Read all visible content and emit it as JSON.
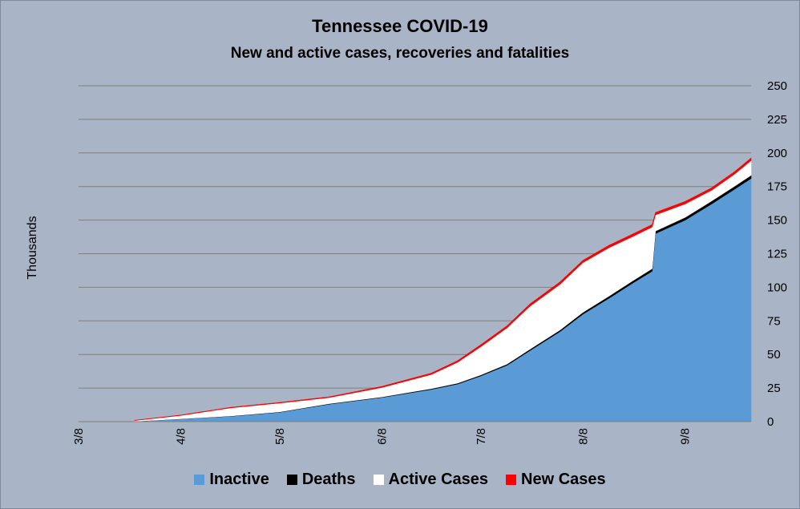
{
  "chart_data": {
    "type": "area",
    "title": "Tennessee COVID-19",
    "subtitle": "New and active cases, recoveries and fatalities",
    "ylabel": "Thousands",
    "xlabel": "",
    "x_tick_labels": [
      "3/8",
      "4/8",
      "5/8",
      "6/8",
      "7/8",
      "8/8",
      "9/8"
    ],
    "y_ticks": [
      0,
      25,
      50,
      75,
      100,
      125,
      150,
      175,
      200,
      225,
      250
    ],
    "ylim": [
      0,
      250
    ],
    "xlim": [
      "2020-03-08",
      "2020-09-28"
    ],
    "y_axis_side": "right",
    "grid": true,
    "legend_position": "bottom",
    "stacked": true,
    "x": [
      "2020-03-25",
      "2020-04-08",
      "2020-04-23",
      "2020-05-08",
      "2020-05-23",
      "2020-06-08",
      "2020-06-23",
      "2020-07-01",
      "2020-07-08",
      "2020-07-16",
      "2020-07-23",
      "2020-08-01",
      "2020-08-08",
      "2020-08-16",
      "2020-08-23",
      "2020-08-29",
      "2020-08-30",
      "2020-09-08",
      "2020-09-16",
      "2020-09-23",
      "2020-09-28"
    ],
    "series": [
      {
        "name": "Inactive",
        "color": "#5b9bd5",
        "values": [
          0.2,
          2,
          4,
          7,
          13,
          18,
          24,
          28,
          34,
          42,
          53,
          67,
          80,
          92,
          103,
          112,
          140,
          150,
          162,
          173,
          181
        ]
      },
      {
        "name": "Deaths",
        "color": "#000000",
        "values": [
          0.1,
          0.1,
          0.2,
          0.3,
          0.4,
          0.4,
          0.6,
          0.7,
          0.8,
          0.9,
          1.1,
          1.2,
          1.4,
          1.6,
          1.7,
          1.9,
          1.9,
          2.1,
          2.2,
          2.3,
          2.4
        ]
      },
      {
        "name": "Active Cases",
        "color": "#ffffff",
        "values": [
          0.5,
          2.5,
          6,
          6.5,
          4.5,
          7,
          10.5,
          15.5,
          21,
          27,
          32,
          34,
          37,
          36,
          33,
          31,
          12,
          10,
          8,
          9,
          11
        ]
      },
      {
        "name": "New Cases",
        "color": "#ff0000",
        "values": [
          0.2,
          0.3,
          0.4,
          0.5,
          0.6,
          0.8,
          1.0,
          1.2,
          1.4,
          1.5,
          1.6,
          1.7,
          1.7,
          1.8,
          1.8,
          1.8,
          1.8,
          1.8,
          1.8,
          1.8,
          1.8
        ]
      }
    ]
  }
}
